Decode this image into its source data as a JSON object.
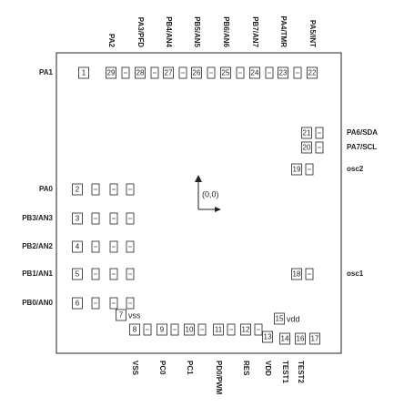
{
  "pins": {
    "left": [
      {
        "number": "1",
        "label": "PA1"
      },
      {
        "number": "2",
        "label": "PA0"
      },
      {
        "number": "3",
        "label": "PB3/AN3"
      },
      {
        "number": "4",
        "label": "PB2/AN2"
      },
      {
        "number": "5",
        "label": "PB1/AN1"
      },
      {
        "number": "6",
        "label": "PB0/AN0"
      }
    ],
    "top": [
      {
        "number": "29",
        "label": "PA2"
      },
      {
        "number": "28",
        "label": "PA3/PFD"
      },
      {
        "number": "27",
        "label": "PB4/AN4"
      },
      {
        "number": "26",
        "label": "PB5/AN5"
      },
      {
        "number": "25",
        "label": "PB6/AN6"
      },
      {
        "number": "24",
        "label": "PB7/AN7"
      },
      {
        "number": "23",
        "label": "PA4/TMR"
      },
      {
        "number": "22",
        "label": "PA5/INT"
      }
    ],
    "right": [
      {
        "number": "21",
        "label": "PA6/SDA"
      },
      {
        "number": "20",
        "label": "PA7/SCL"
      },
      {
        "number": "19",
        "label": "osc2"
      },
      {
        "number": "18",
        "label": "osc1"
      }
    ],
    "bottom": [
      {
        "number": "8",
        "label": "VSS"
      },
      {
        "number": "9",
        "label": "PC0"
      },
      {
        "number": "10",
        "label": "PC1"
      },
      {
        "number": "11",
        "label": "PD0/PWM"
      },
      {
        "number": "12",
        "label": "RES"
      },
      {
        "number": "13",
        "label": "VDD"
      },
      {
        "number": "14",
        "label": "TEST1"
      },
      {
        "number": "16",
        "label": "TEST2"
      },
      {
        "number": "17"
      }
    ],
    "inner": [
      {
        "number": "7",
        "label": "vss"
      },
      {
        "number": "15",
        "label": "vdd"
      }
    ]
  },
  "origin_label": "(0,0)"
}
